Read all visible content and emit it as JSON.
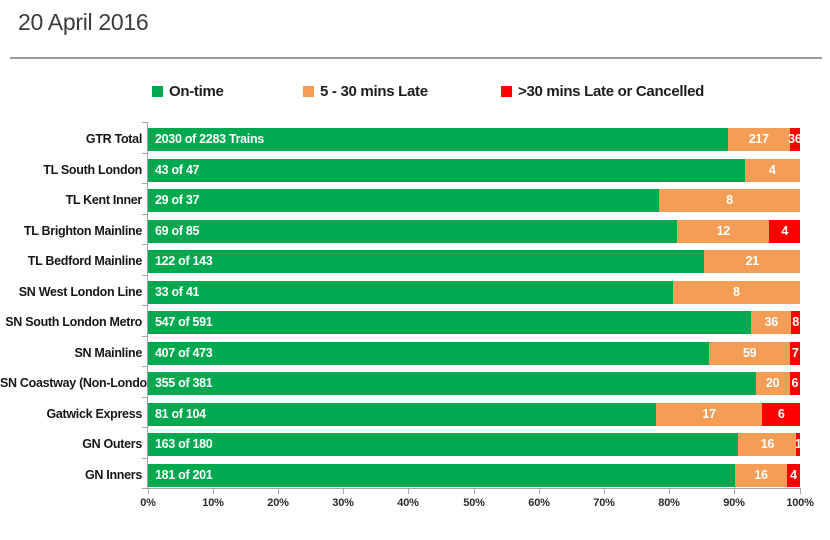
{
  "title": "20 April 2016",
  "legend": [
    {
      "label": "On-time",
      "color": "#00a84f"
    },
    {
      "label": "5 - 30 mins Late",
      "color": "#f49d56"
    },
    {
      "label": ">30 mins Late or Cancelled",
      "color": "#fe0000"
    }
  ],
  "chart_data": {
    "type": "bar",
    "orientation": "horizontal",
    "stacked": true,
    "title": "20 April 2016",
    "xlabel": "",
    "ylabel": "",
    "xlim": [
      0,
      100
    ],
    "x_ticks": [
      "0%",
      "10%",
      "20%",
      "30%",
      "40%",
      "50%",
      "60%",
      "70%",
      "80%",
      "90%",
      "100%"
    ],
    "grid": false,
    "legend_position": "top",
    "categories": [
      "GTR Total",
      "TL South London",
      "TL Kent Inner",
      "TL Brighton Mainline",
      "TL Bedford Mainline",
      "SN West London Line",
      "SN South London Metro",
      "SN Mainline",
      "SN Coastway (Non-London)",
      "Gatwick Express",
      "GN Outers",
      "GN Inners"
    ],
    "totals": [
      2283,
      47,
      37,
      85,
      143,
      41,
      591,
      473,
      381,
      104,
      180,
      201
    ],
    "series": [
      {
        "name": "On-time",
        "color": "#00a84f",
        "values": [
          2030,
          43,
          29,
          69,
          122,
          33,
          547,
          407,
          355,
          81,
          163,
          181
        ]
      },
      {
        "name": "5 - 30 mins Late",
        "color": "#f49d56",
        "values": [
          217,
          4,
          8,
          12,
          21,
          8,
          36,
          59,
          20,
          17,
          16,
          16
        ]
      },
      {
        "name": ">30 mins Late or Cancelled",
        "color": "#fe0000",
        "values": [
          36,
          0,
          0,
          4,
          0,
          0,
          8,
          7,
          6,
          6,
          1,
          4
        ]
      }
    ],
    "on_time_bar_labels": [
      "2030 of 2283 Trains",
      "43 of 47",
      "29 of 37",
      "69 of 85",
      "122 of 143",
      "33 of 41",
      "547 of 591",
      "407 of 473",
      "355 of 381",
      "81 of 104",
      "163 of 180",
      "181 of 201"
    ]
  }
}
